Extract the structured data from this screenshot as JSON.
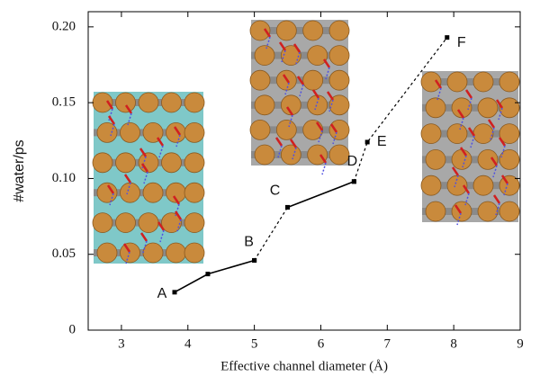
{
  "chart_data": {
    "type": "line",
    "x_label": "Effective channel diameter (Å)",
    "y_label": "#water/ps",
    "x": [
      3.8,
      4.3,
      5.0,
      5.5,
      6.5,
      6.7,
      7.9
    ],
    "point_labels": [
      "A",
      null,
      "B",
      "C",
      "D",
      "E",
      "F"
    ],
    "series": [
      {
        "color": "#000000",
        "dash": "solid",
        "values": [
          0.025,
          0.037,
          0.046,
          null,
          null,
          null,
          null
        ]
      },
      {
        "color": "#000000",
        "dash": "dotted",
        "values": [
          null,
          null,
          0.046,
          0.081,
          null,
          null,
          null
        ]
      },
      {
        "color": "#000000",
        "dash": "solid",
        "values": [
          null,
          null,
          null,
          0.081,
          0.098,
          null,
          null
        ]
      },
      {
        "color": "#000000",
        "dash": "dotted",
        "values": [
          null,
          null,
          null,
          null,
          0.098,
          0.124,
          0.193
        ]
      }
    ],
    "xlim": [
      2.5,
      9
    ],
    "xticks": [
      3,
      4,
      5,
      6,
      7,
      8,
      9
    ],
    "ylim": [
      0,
      0.21
    ],
    "yticks": [
      0,
      0.05,
      {
        "value": 0.1,
        "label": "0.10"
      },
      0.15,
      {
        "value": 0.2,
        "label": "0.20"
      }
    ]
  }
}
